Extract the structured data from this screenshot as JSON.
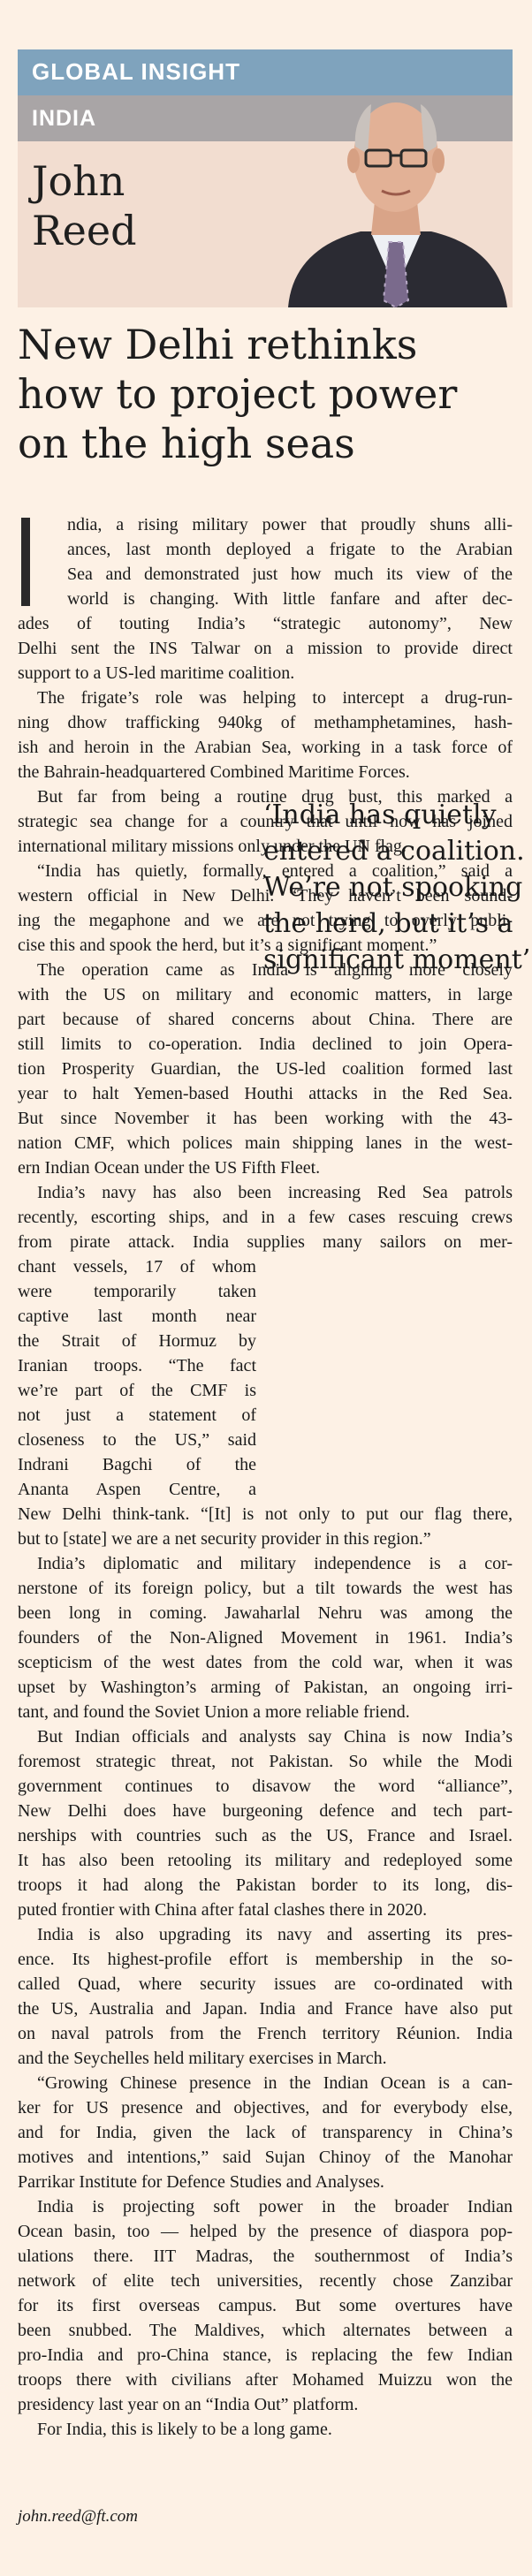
{
  "header": {
    "rubric": "GLOBAL INSIGHT",
    "section": "INDIA",
    "author_first": "John",
    "author_last": "Reed",
    "colors": {
      "top_band": "#7fa3bd",
      "mid_band": "#a9a5a6",
      "panel": "#f2ddd0"
    }
  },
  "headline": [
    "New Delhi rethinks",
    "how to project power",
    "on the high seas"
  ],
  "pullquote": [
    "‘India has quietly",
    "entered a coalition.",
    "We’re not spooking",
    "the herd, but it’s a",
    "significant moment’"
  ],
  "body_lines": [
    "ndia, a rising military power that proudly shuns alli-",
    "ances, last month deployed a frigate to the Arabian",
    "Sea and demonstrated just how much its view of the",
    "world is changing. With little fanfare and after dec-",
    "ades of touting India’s “strategic autonomy”, New",
    "Delhi sent the INS Talwar on a mission to provide direct",
    "support to a US-led maritime coalition.",
    "The frigate’s role was helping to intercept a drug-run-",
    "ning dhow trafficking 940kg of methamphetamines, hash-",
    "ish and heroin in the Arabian Sea, working in a task force of",
    "the Bahrain-headquartered Combined Maritime Forces.",
    "But far from being a routine drug bust, this marked a",
    "strategic sea change for a country that until now has joined",
    "international military missions only under the UN flag.",
    "“India has quietly, formally, entered a coalition,” said a",
    "western official in New Delhi. “They haven’t been sound-",
    "ing the megaphone and we are not trying to overly publi-",
    "cise this and spook the herd, but it’s a significant moment.”",
    "The operation came as India is aligning more closely",
    "with the US on military and economic matters, in large",
    "part because of shared concerns about China. There are",
    "still limits to co-operation. India declined to join Opera-",
    "tion Prosperity Guardian, the US-led coalition formed last",
    "year to halt Yemen-based Houthi attacks in the Red Sea.",
    "But since November it has been working with the 43-",
    "nation CMF, which polices main shipping lanes in the west-",
    "ern Indian Ocean under the US Fifth Fleet.",
    "India’s navy has also been increasing Red Sea patrols",
    "recently, escorting ships, and in a few cases rescuing crews",
    "from pirate attack. India supplies many sailors on mer-",
    "chant vessels, 17 of whom",
    "were temporarily taken",
    "captive last month near",
    "the Strait of Hormuz by",
    "Iranian troops. “The fact",
    "we’re part of the CMF is",
    "not just a statement of",
    "closeness to the US,” said",
    "Indrani Bagchi of the",
    "Ananta Aspen Centre, a",
    "New Delhi think-tank. “[It] is not only to put our flag there,",
    "but to [state] we are a net security provider in this region.”",
    "India’s diplomatic and military independence is a cor-",
    "nerstone of its foreign policy, but a tilt towards the west has",
    "been long in coming. Jawaharlal Nehru was among the",
    "founders of the Non-Aligned Movement in 1961. India’s",
    "scepticism of the west dates from the cold war, when it was",
    "upset by Washington’s arming of Pakistan, an ongoing irri-",
    "tant, and found the Soviet Union a more reliable friend.",
    "But Indian officials and analysts say China is now India’s",
    "foremost strategic threat, not Pakistan. So while the Modi",
    "government continues to disavow the word “alliance”,",
    "New Delhi does have burgeoning defence and tech part-",
    "nerships with countries such as the US, France and Israel.",
    "It has also been retooling its military and redeployed some",
    "troops it had along the Pakistan border to its long, dis-",
    "puted frontier with China after fatal clashes there in 2020.",
    "India is also upgrading its navy and asserting its pres-",
    "ence. Its highest-profile effort is membership in the so-",
    "called Quad, where security issues are co-ordinated with",
    "the US, Australia and Japan. India and France have also put",
    "on naval patrols from the French territory Réunion. India",
    "and the Seychelles held military exercises in March.",
    "“Growing Chinese presence in the Indian Ocean is a can-",
    "ker for US presence and objectives, and for everybody else,",
    "and for India, given the lack of transparency in China’s",
    "motives and intentions,” said Sujan Chinoy of the Manohar",
    "Parrikar Institute for Defence Studies and Analyses.",
    "India is projecting soft power in the broader Indian",
    "Ocean basin, too — helped by the presence of diaspora pop-",
    "ulations there. IIT Madras, the southernmost of India’s",
    "network of elite tech universities, recently chose Zanzibar",
    "for its first overseas campus. But some overtures have",
    "been snubbed. The Maldives, which alternates between a",
    "pro-India and pro-China stance, is replacing the few Indian",
    "troops there with civilians after Mohamed Muizzu won the",
    "presidency last year on an “India Out” platform.",
    "For India, this is likely to be a long game."
  ],
  "footer": {
    "email": "john.reed@ft.com"
  }
}
